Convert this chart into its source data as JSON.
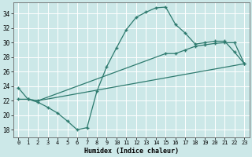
{
  "xlabel": "Humidex (Indice chaleur)",
  "bg_color": "#cce8e8",
  "grid_color": "#ffffff",
  "line_color": "#2d7a6e",
  "xlim": [
    -0.5,
    23.5
  ],
  "ylim": [
    17.0,
    35.5
  ],
  "yticks": [
    18,
    20,
    22,
    24,
    26,
    28,
    30,
    32,
    34
  ],
  "xticks": [
    0,
    1,
    2,
    3,
    4,
    5,
    6,
    7,
    8,
    9,
    10,
    11,
    12,
    13,
    14,
    15,
    16,
    17,
    18,
    19,
    20,
    21,
    22,
    23
  ],
  "series": {
    "line1_x": [
      0,
      1,
      2,
      3,
      4,
      5,
      6,
      7,
      8,
      9,
      10,
      11,
      12,
      13,
      14,
      15,
      16,
      17,
      18,
      19,
      20,
      21,
      22,
      23
    ],
    "line1_y": [
      23.8,
      22.2,
      21.8,
      21.1,
      20.3,
      19.2,
      18.0,
      18.3,
      23.3,
      26.7,
      29.3,
      31.8,
      33.5,
      34.2,
      34.8,
      34.9,
      32.5,
      31.3,
      29.8,
      30.0,
      30.2,
      30.2,
      28.7,
      27.1
    ],
    "line2_x": [
      0,
      1,
      2,
      15,
      16,
      17,
      18,
      19,
      20,
      21,
      22,
      23
    ],
    "line2_y": [
      22.2,
      22.2,
      22.0,
      28.5,
      28.5,
      29.0,
      29.5,
      29.7,
      29.9,
      30.0,
      30.0,
      27.1
    ],
    "line3_x": [
      0,
      1,
      2,
      23
    ],
    "line3_y": [
      22.2,
      22.2,
      22.0,
      27.1
    ]
  }
}
